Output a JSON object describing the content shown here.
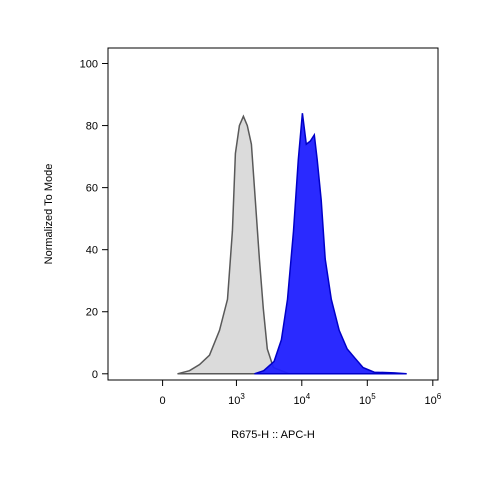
{
  "chart_data": {
    "type": "area",
    "xlabel": "R675-H :: APC-H",
    "ylabel": "Normalized To Mode",
    "xscale": "asinh",
    "xlim": [
      -500,
      1200000
    ],
    "ylim": [
      -2,
      105
    ],
    "xticks": [
      0,
      {
        "value": 1000,
        "label": "10",
        "exponent": "3"
      },
      {
        "value": 10000,
        "label": "10",
        "exponent": "4"
      },
      {
        "value": 100000,
        "label": "10",
        "exponent": "5"
      },
      {
        "value": 1000000,
        "label": "10",
        "exponent": "6"
      }
    ],
    "yticks": [
      0,
      20,
      40,
      60,
      80,
      100
    ],
    "series": [
      {
        "color": "#d9d9d9",
        "edge": "#595959",
        "x": [
          82,
          164,
          255,
          375,
          544,
          726,
          867,
          964,
          1112,
          1280,
          1470,
          1700,
          1950,
          2250,
          2580,
          2970,
          3680,
          6450
        ],
        "values": [
          0,
          1,
          3,
          6,
          14,
          24,
          46,
          71,
          80,
          83,
          80,
          74,
          56,
          37,
          21,
          8,
          2,
          0
        ]
      },
      {
        "color": "#1f1fff",
        "edge": "#0000c8",
        "x": [
          1890,
          2620,
          3780,
          4890,
          6050,
          7460,
          8850,
          10200,
          11700,
          13500,
          15500,
          17200,
          19800,
          22800,
          28200,
          37300,
          49300,
          65200,
          86400,
          128000,
          257000,
          400000
        ],
        "values": [
          0,
          1,
          4,
          11,
          24,
          46,
          69,
          84,
          74,
          75,
          77,
          69,
          56,
          37,
          24,
          14,
          8,
          5,
          2,
          0.5,
          0.3,
          0
        ]
      }
    ]
  }
}
